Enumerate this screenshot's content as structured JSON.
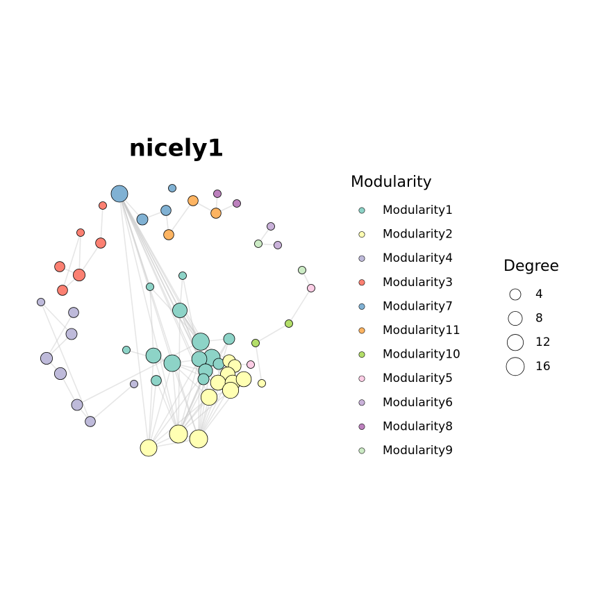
{
  "title": "nicely1",
  "legend": {
    "title": "Modularity",
    "entries": [
      {
        "label": "Modularity1",
        "color": "#8dd3c7"
      },
      {
        "label": "Modularity2",
        "color": "#ffffb3"
      },
      {
        "label": "Modularity4",
        "color": "#bebada"
      },
      {
        "label": "Modularity3",
        "color": "#fb8072"
      },
      {
        "label": "Modularity7",
        "color": "#80b1d3"
      },
      {
        "label": "Modularity11",
        "color": "#fdb462"
      },
      {
        "label": "Modularity10",
        "color": "#b3de69"
      },
      {
        "label": "Modularity5",
        "color": "#fccde5"
      },
      {
        "label": "Modularity6",
        "color": "#c9b1d9"
      },
      {
        "label": "Modularity8",
        "color": "#bc80bd"
      },
      {
        "label": "Modularity9",
        "color": "#ccebc5"
      }
    ]
  },
  "size_legend": {
    "title": "Degree",
    "values": [
      4,
      8,
      12,
      16
    ]
  },
  "nodes": [
    {
      "color": "#80b1d3",
      "degree": 13
    },
    {
      "color": "#80b1d3",
      "degree": 1
    },
    {
      "color": "#80b1d3",
      "degree": 3
    },
    {
      "color": "#80b1d3",
      "degree": 4
    },
    {
      "color": "#fb8072",
      "degree": 1
    },
    {
      "color": "#fb8072",
      "degree": 1
    },
    {
      "color": "#fb8072",
      "degree": 3
    },
    {
      "color": "#fb8072",
      "degree": 3
    },
    {
      "color": "#fb8072",
      "degree": 5
    },
    {
      "color": "#fb8072",
      "degree": 3
    },
    {
      "color": "#fdb462",
      "degree": 3
    },
    {
      "color": "#fdb462",
      "degree": 3
    },
    {
      "color": "#fdb462",
      "degree": 3
    },
    {
      "color": "#bc80bd",
      "degree": 1
    },
    {
      "color": "#bc80bd",
      "degree": 1
    },
    {
      "color": "#c9b1d9",
      "degree": 1
    },
    {
      "color": "#c9b1d9",
      "degree": 1
    },
    {
      "color": "#ccebc5",
      "degree": 1
    },
    {
      "color": "#ccebc5",
      "degree": 1
    },
    {
      "color": "#fccde5",
      "degree": 1
    },
    {
      "color": "#b3de69",
      "degree": 1
    },
    {
      "color": "#b3de69",
      "degree": 1
    },
    {
      "color": "#fccde5",
      "degree": 1
    },
    {
      "color": "#ffffb3",
      "degree": 1
    },
    {
      "color": "#bebada",
      "degree": 1
    },
    {
      "color": "#bebada",
      "degree": 3
    },
    {
      "color": "#bebada",
      "degree": 4
    },
    {
      "color": "#bebada",
      "degree": 5
    },
    {
      "color": "#bebada",
      "degree": 5
    },
    {
      "color": "#bebada",
      "degree": 4
    },
    {
      "color": "#bebada",
      "degree": 3
    },
    {
      "color": "#bebada",
      "degree": 1
    },
    {
      "color": "#8dd3c7",
      "degree": 1
    },
    {
      "color": "#8dd3c7",
      "degree": 1
    },
    {
      "color": "#8dd3c7",
      "degree": 9
    },
    {
      "color": "#8dd3c7",
      "degree": 1
    },
    {
      "color": "#8dd3c7",
      "degree": 10
    },
    {
      "color": "#8dd3c7",
      "degree": 13
    },
    {
      "color": "#8dd3c7",
      "degree": 3
    },
    {
      "color": "#8dd3c7",
      "degree": 14
    },
    {
      "color": "#8dd3c7",
      "degree": 13
    },
    {
      "color": "#8dd3c7",
      "degree": 10
    },
    {
      "color": "#8dd3c7",
      "degree": 8
    },
    {
      "color": "#8dd3c7",
      "degree": 4
    },
    {
      "color": "#8dd3c7",
      "degree": 4
    },
    {
      "color": "#8dd3c7",
      "degree": 4
    },
    {
      "color": "#ffffb3",
      "degree": 6
    },
    {
      "color": "#ffffb3",
      "degree": 6
    },
    {
      "color": "#ffffb3",
      "degree": 9
    },
    {
      "color": "#ffffb3",
      "degree": 10
    },
    {
      "color": "#ffffb3",
      "degree": 10
    },
    {
      "color": "#ffffb3",
      "degree": 10
    },
    {
      "color": "#ffffb3",
      "degree": 12
    },
    {
      "color": "#ffffb3",
      "degree": 12
    },
    {
      "color": "#ffffb3",
      "degree": 13
    },
    {
      "color": "#ffffb3",
      "degree": 16
    },
    {
      "color": "#ffffb3",
      "degree": 16
    }
  ]
}
